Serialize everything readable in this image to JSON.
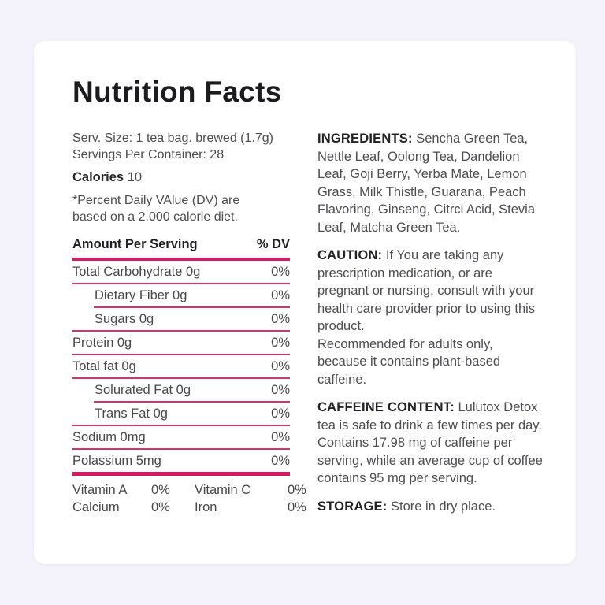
{
  "theme": {
    "page_bg": "#f4f3fb",
    "card_bg": "#ffffff",
    "accent": "#d81b60",
    "accent_thin": "#d6336c",
    "text": "#4d4d52"
  },
  "title": "Nutrition Facts",
  "serving": {
    "size_line": "Serv. Size: 1 tea bag. brewed (1.7g)",
    "servings_line": "Servings Per Container: 28",
    "calories_label": "Calories",
    "calories_value": "10",
    "dv_note": "*Percent Daily VAlue (DV) are\nbased on a 2.000 calorie diet."
  },
  "table": {
    "header": {
      "amount": "Amount Per Serving",
      "dv": "% DV"
    },
    "rows": [
      {
        "label": "Total Carbohydrate 0g",
        "value": "0%",
        "indent": false,
        "rule": "full"
      },
      {
        "label": "Dietary Fiber 0g",
        "value": "0%",
        "indent": true,
        "rule": "indent"
      },
      {
        "label": "Sugars 0g",
        "value": "0%",
        "indent": true,
        "rule": "full"
      },
      {
        "label": "Protein 0g",
        "value": "0%",
        "indent": false,
        "rule": "full"
      },
      {
        "label": "Total fat 0g",
        "value": "0%",
        "indent": false,
        "rule": "full"
      },
      {
        "label": "Solurated Fat 0g",
        "value": "0%",
        "indent": true,
        "rule": "indent"
      },
      {
        "label": "Trans Fat 0g",
        "value": "0%",
        "indent": true,
        "rule": "full"
      },
      {
        "label": "Sodium 0mg",
        "value": "0%",
        "indent": false,
        "rule": "full"
      },
      {
        "label": "Polassium 5mg",
        "value": "0%",
        "indent": false,
        "rule": "thick"
      }
    ],
    "micros": [
      {
        "label": "Vitamin A",
        "value": "0%"
      },
      {
        "label": "Vitamin C",
        "value": "0%"
      },
      {
        "label": "Calcium",
        "value": "0%"
      },
      {
        "label": "Iron",
        "value": "0%"
      }
    ]
  },
  "sections": [
    {
      "heading": "INGREDIENTS:",
      "body": "Sencha Green Tea, Nettle Leaf, Oolong Tea, Dandelion Leaf, Goji Berry, Yerba Mate, Lemon Grass, Milk Thistle, Guarana, Peach Flavoring, Ginseng, Citrci Acid, Stevia Leaf, Matcha Green Tea."
    },
    {
      "heading": "CAUTION:",
      "body": "If You are taking any prescription medication, or are pregnant or nursing, consult with your health care provider prior to using this product.\nRecommended for adults only, because it contains plant-based caffeine."
    },
    {
      "heading": "CAFFEINE CONTENT:",
      "body": "Lulutox Detox tea is safe to drink a few times per day. Contains 17.98 mg of caffeine per serving, while an average cup of coffee contains 95 mg per serving."
    },
    {
      "heading": "STORAGE:",
      "body": "Store in dry place."
    }
  ]
}
